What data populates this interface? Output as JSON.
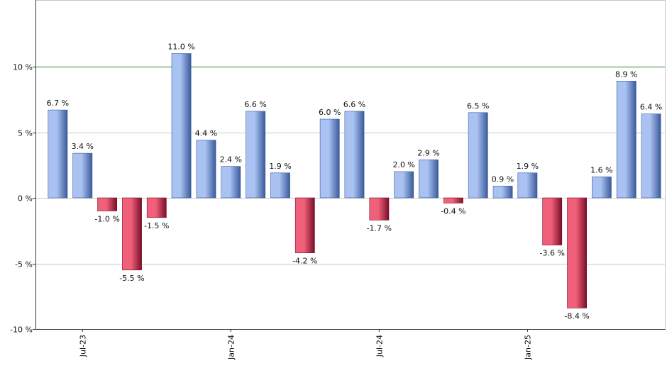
{
  "chart_data": {
    "type": "bar",
    "title": "",
    "xlabel": "",
    "ylabel": "",
    "ylim": [
      -10,
      12
    ],
    "grid": true,
    "value_suffix": " %",
    "reference_line": {
      "value": 10,
      "color": "#2e7d32"
    },
    "y_ticks": [
      {
        "value": 10,
        "label": "10 %"
      },
      {
        "value": 5,
        "label": "5 %"
      },
      {
        "value": 0,
        "label": "0 %"
      },
      {
        "value": -5,
        "label": "-5 %"
      },
      {
        "value": -10,
        "label": "-10 %"
      }
    ],
    "values": [
      6.7,
      3.4,
      -1.0,
      -5.5,
      -1.5,
      11.0,
      4.4,
      2.4,
      6.6,
      1.9,
      -4.2,
      6.0,
      6.6,
      -1.7,
      2.0,
      2.9,
      -0.4,
      6.5,
      0.9,
      1.9,
      -3.6,
      -8.4,
      1.6,
      8.9,
      6.4
    ],
    "value_labels": [
      "6.7 %",
      "3.4 %",
      "-1.0 %",
      "-5.5 %",
      "-1.5 %",
      "11.0 %",
      "4.4 %",
      "2.4 %",
      "6.6 %",
      "1.9 %",
      "-4.2 %",
      "6.0 %",
      "6.6 %",
      "-1.7 %",
      "2.0 %",
      "2.9 %",
      "-0.4 %",
      "6.5 %",
      "0.9 %",
      "1.9 %",
      "-3.6 %",
      "-8.4 %",
      "1.6 %",
      "8.9 %",
      "6.4 %"
    ],
    "x_ticks": [
      {
        "index": 1,
        "label": "Jul-23"
      },
      {
        "index": 7,
        "label": "Jan-24"
      },
      {
        "index": 13,
        "label": "Jul-24"
      },
      {
        "index": 19,
        "label": "Jan-25"
      }
    ],
    "colors": {
      "positive_light": "#a9c2f2",
      "positive_dark": "#3a5a9a",
      "negative_light": "#f0607a",
      "negative_dark": "#7a0f28",
      "grid": "#c8c8c8",
      "axis": "#333333"
    }
  }
}
